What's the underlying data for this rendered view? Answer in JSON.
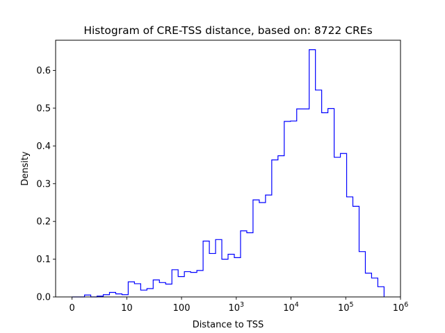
{
  "chart_data": {
    "type": "histogram",
    "title": "Histogram of CRE-TSS distance, based on: 8722 CREs",
    "xlabel": "Distance to TSS",
    "ylabel": "Density",
    "xscale": "log (shifted by 1)",
    "xlim_log10_shifted": [
      -0.3,
      6.0
    ],
    "ylim": [
      0,
      0.68
    ],
    "color": "#0000ff",
    "histtype": "step",
    "x_ticks": [
      {
        "label": "0"
      },
      {
        "label": "10"
      },
      {
        "label": "100"
      },
      {
        "base": "10",
        "exp": "3"
      },
      {
        "base": "10",
        "exp": "4"
      },
      {
        "base": "10",
        "exp": "5"
      },
      {
        "base": "10",
        "exp": "6"
      }
    ],
    "y_ticks": [
      "0.0",
      "0.1",
      "0.2",
      "0.3",
      "0.4",
      "0.5",
      "0.6"
    ],
    "bin_edges_log10": [
      0.0,
      0.114,
      0.228,
      0.342,
      0.456,
      0.57,
      0.684,
      0.798,
      0.912,
      1.026,
      1.14,
      1.254,
      1.368,
      1.482,
      1.596,
      1.71,
      1.824,
      1.938,
      2.052,
      2.166,
      2.28,
      2.394,
      2.508,
      2.622,
      2.736,
      2.85,
      2.964,
      3.078,
      3.192,
      3.306,
      3.42,
      3.534,
      3.648,
      3.762,
      3.876,
      3.99,
      4.104,
      4.218,
      4.332,
      4.446,
      4.56,
      4.674,
      4.788,
      4.902,
      5.016,
      5.13,
      5.244,
      5.358,
      5.472,
      5.586,
      5.7
    ],
    "densities": [
      0.0,
      0.0,
      0.005,
      0.0,
      0.002,
      0.006,
      0.012,
      0.008,
      0.006,
      0.04,
      0.035,
      0.018,
      0.022,
      0.045,
      0.038,
      0.034,
      0.072,
      0.054,
      0.067,
      0.065,
      0.07,
      0.148,
      0.115,
      0.152,
      0.1,
      0.113,
      0.104,
      0.175,
      0.17,
      0.257,
      0.25,
      0.27,
      0.363,
      0.374,
      0.465,
      0.466,
      0.498,
      0.498,
      0.655,
      0.548,
      0.488,
      0.499,
      0.37,
      0.38,
      0.265,
      0.24,
      0.12,
      0.063,
      0.05,
      0.027
    ]
  }
}
